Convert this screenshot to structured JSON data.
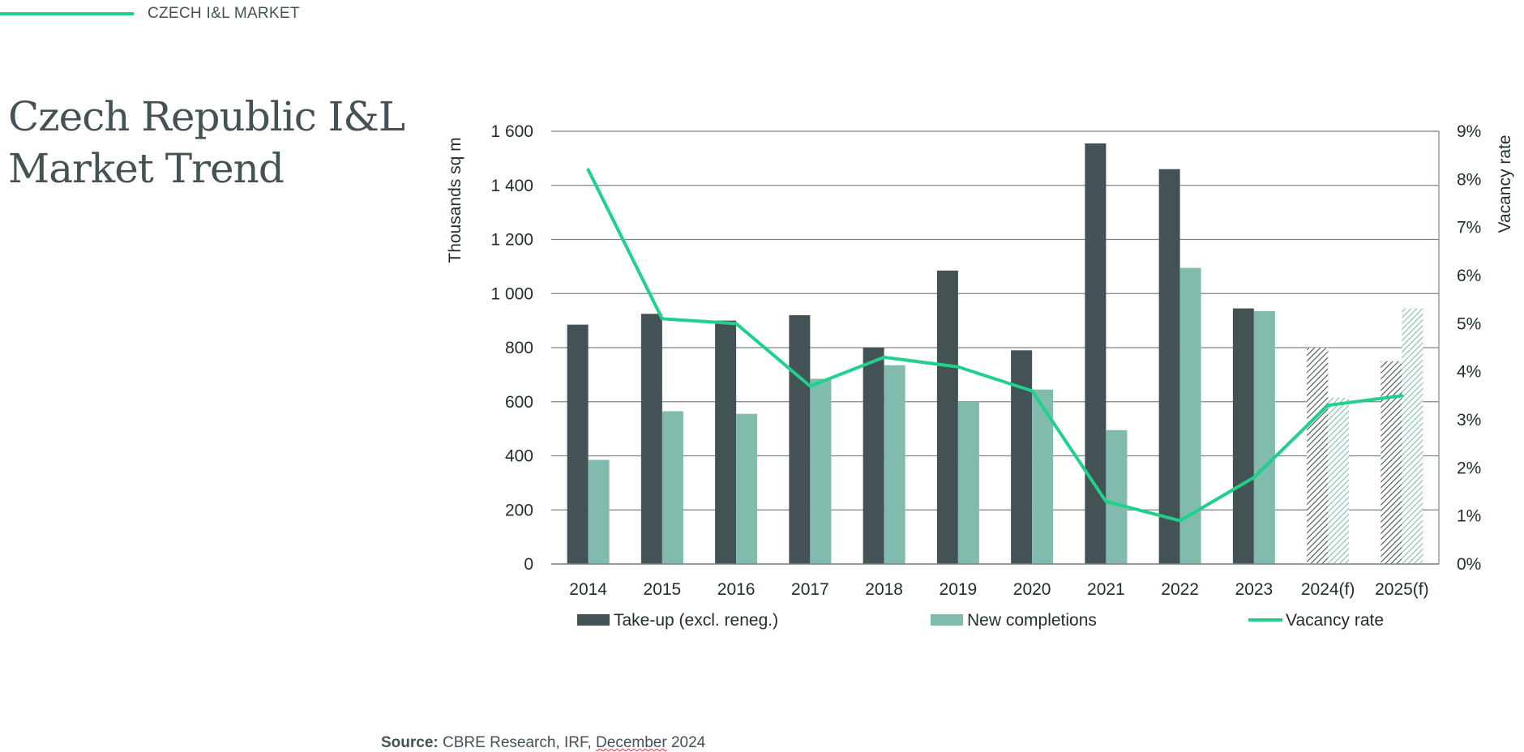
{
  "header": {
    "section_label": "CZECH I&L MARKET"
  },
  "page": {
    "title_line1": "Czech Republic I&L",
    "title_line2": "Market Trend"
  },
  "source": {
    "label": "Source:",
    "text_before_date": " CBRE Research, IRF, ",
    "date_word": "December",
    "text_after_date": " 2024"
  },
  "colors": {
    "accent_green": "#1fd18b",
    "takeup_dark": "#435254",
    "completions_teal": "#80bbad",
    "grid": "#7a8585",
    "text": "#1f2d2e"
  },
  "chart_data": {
    "type": "bar",
    "categories": [
      "2014",
      "2015",
      "2016",
      "2017",
      "2018",
      "2019",
      "2020",
      "2021",
      "2022",
      "2023",
      "2024(f)",
      "2025(f)"
    ],
    "forecast_categories": [
      "2024(f)",
      "2025(f)"
    ],
    "ylabel": "Thousands sq m",
    "y2label": "Vacancy rate",
    "ylim": [
      0,
      1600
    ],
    "y_ticks": [
      0,
      200,
      400,
      600,
      800,
      1000,
      1200,
      1400,
      1600
    ],
    "y_tick_labels": [
      "0",
      "200",
      "400",
      "600",
      "800",
      "1 000",
      "1 200",
      "1 400",
      "1 600"
    ],
    "y2lim": [
      0,
      9
    ],
    "y2_ticks": [
      0,
      1,
      2,
      3,
      4,
      5,
      6,
      7,
      8,
      9
    ],
    "y2_tick_labels": [
      "0%",
      "1%",
      "2%",
      "3%",
      "4%",
      "5%",
      "6%",
      "7%",
      "8%",
      "9%"
    ],
    "grid": true,
    "legend_position": "bottom",
    "series": [
      {
        "name": "Take-up (excl. reneg.)",
        "kind": "bar",
        "color": "#435254",
        "values": [
          885,
          925,
          900,
          920,
          800,
          1085,
          790,
          1555,
          1460,
          945,
          800,
          750
        ]
      },
      {
        "name": "New completions",
        "kind": "bar",
        "color": "#80bbad",
        "values": [
          385,
          565,
          555,
          685,
          735,
          600,
          645,
          495,
          1095,
          935,
          615,
          945
        ]
      },
      {
        "name": "Vacancy rate",
        "kind": "line",
        "axis": "right",
        "color": "#1fd18b",
        "values": [
          8.2,
          5.1,
          5.0,
          3.7,
          4.3,
          4.1,
          3.6,
          1.3,
          0.9,
          1.8,
          3.3,
          3.5
        ]
      }
    ]
  }
}
